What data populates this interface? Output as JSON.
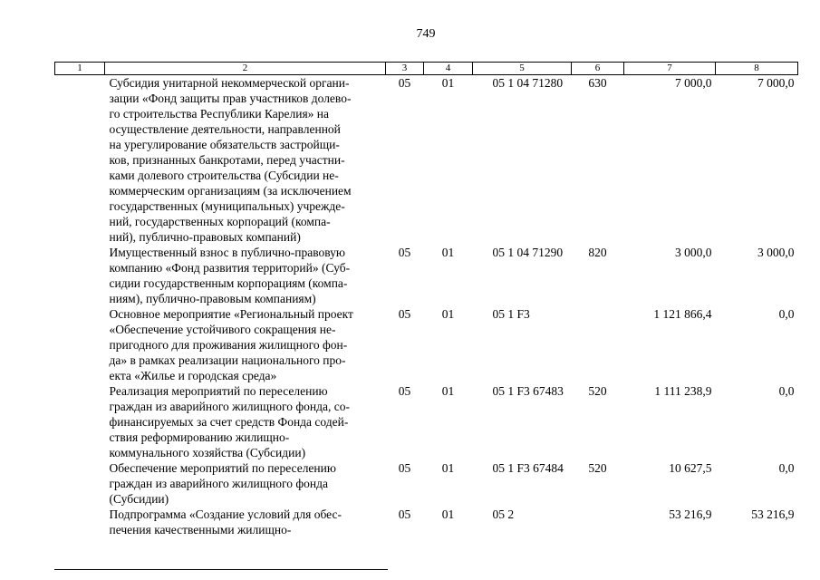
{
  "page": {
    "number": "749"
  },
  "table": {
    "header": [
      "1",
      "2",
      "3",
      "4",
      "5",
      "6",
      "7",
      "8"
    ],
    "rows": [
      {
        "c2": "Субсидия унитарной некоммерческой органи-\nзации «Фонд защиты прав участников долево-\nго строительства Республики Карелия» на\nосуществление деятельности, направленной\nна урегулирование обязательств застройщи-\nков, признанных банкротами, перед участни-\nками долевого строительства (Субсидии не-\nкоммерческим организациям (за исключением\nгосударственных (муниципальных) учрежде-\nний, государственных корпораций (компа-\nний), публично-правовых компаний)",
        "c3": "05",
        "c4": "01",
        "c5": "05 1 04 71280",
        "c6": "630",
        "c7": "7 000,0",
        "c8": "7 000,0"
      },
      {
        "c2": "Имущественный взнос в публично-правовую\nкомпанию «Фонд развития территорий» (Суб-\nсидии государственным корпорациям (компа-\nниям), публично-правовым компаниям)",
        "c3": "05",
        "c4": "01",
        "c5": "05 1 04 71290",
        "c6": "820",
        "c7": "3 000,0",
        "c8": "3 000,0"
      },
      {
        "c2": "Основное мероприятие «Региональный проект\n«Обеспечение устойчивого сокращения не-\nпригодного для проживания жилищного фон-\nда» в рамках реализации национального про-\nекта «Жилье и городская среда»",
        "c3": "05",
        "c4": "01",
        "c5": "05 1 F3",
        "c6": "",
        "c7": "1 121 866,4",
        "c8": "0,0"
      },
      {
        "c2": "Реализация мероприятий по переселению\nграждан из аварийного жилищного фонда, со-\nфинансируемых за счет средств Фонда содей-\nствия реформированию жилищно-\nкоммунального хозяйства (Субсидии)",
        "c3": "05",
        "c4": "01",
        "c5": "05 1 F3 67483",
        "c6": "520",
        "c7": "1 111 238,9",
        "c8": "0,0"
      },
      {
        "c2": "Обеспечение мероприятий по переселению\nграждан из аварийного жилищного фонда\n(Субсидии)",
        "c3": "05",
        "c4": "01",
        "c5": "05 1 F3 67484",
        "c6": "520",
        "c7": "10 627,5",
        "c8": "0,0"
      },
      {
        "c2": "Подпрограмма «Создание условий для обес-\nпечения качественными жилищно-",
        "c3": "05",
        "c4": "01",
        "c5": "05 2",
        "c6": "",
        "c7": "53 216,9",
        "c8": "53 216,9"
      }
    ]
  }
}
